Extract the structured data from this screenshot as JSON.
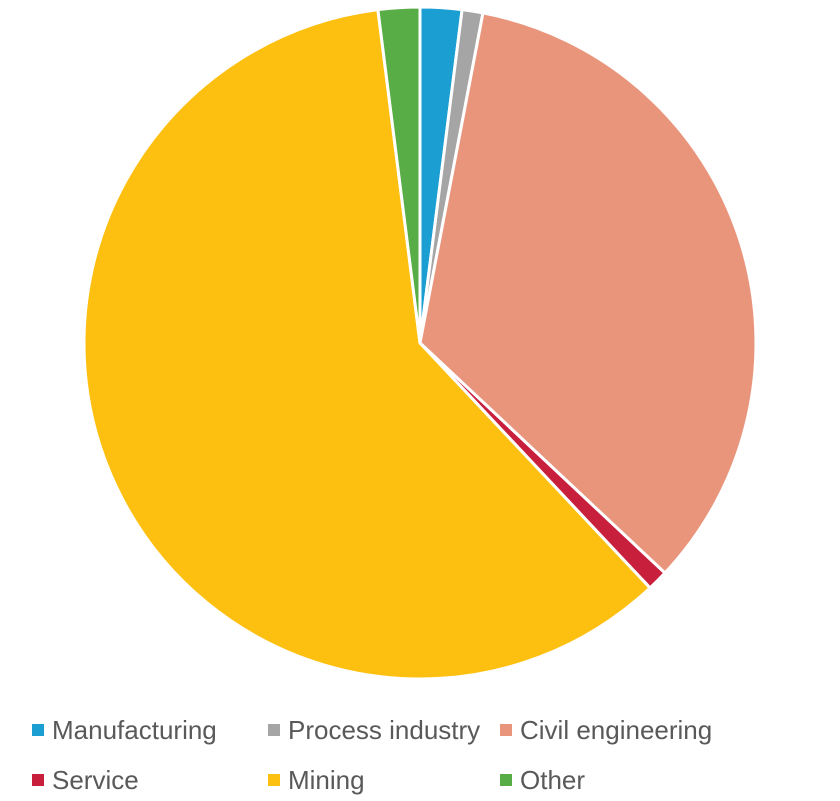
{
  "chart_data": {
    "type": "pie",
    "start_angle_deg": 0,
    "direction": "clockwise",
    "slices": [
      {
        "label": "Manufacturing",
        "value": 2,
        "color": "#1B9ED2"
      },
      {
        "label": "Process industry",
        "value": 1,
        "color": "#A5A5A5"
      },
      {
        "label": "Civil engineering",
        "value": 34,
        "color": "#E9957C"
      },
      {
        "label": "Service",
        "value": 1,
        "color": "#C8203C"
      },
      {
        "label": "Mining",
        "value": 60,
        "color": "#FDC010"
      },
      {
        "label": "Other",
        "value": 2,
        "color": "#58AD46"
      }
    ],
    "legend_position": "bottom",
    "title": "",
    "show_data_labels": false
  }
}
